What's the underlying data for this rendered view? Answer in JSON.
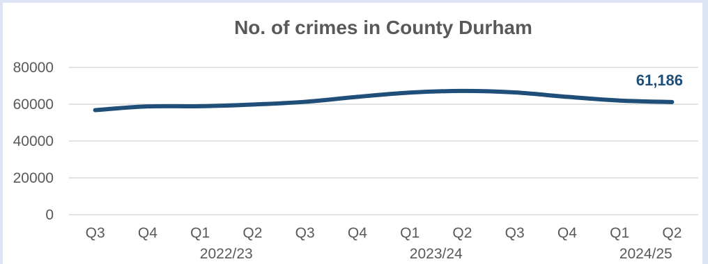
{
  "chart_data": {
    "type": "line",
    "title": "No. of crimes in County Durham",
    "xlabel": "",
    "ylabel": "",
    "categories": [
      "Q3",
      "Q4",
      "Q1",
      "Q2",
      "Q3",
      "Q4",
      "Q1",
      "Q2",
      "Q3",
      "Q4",
      "Q1",
      "Q2"
    ],
    "year_groups": [
      {
        "label": "2022/23",
        "start_index": 2,
        "end_index": 3
      },
      {
        "label": "2023/24",
        "start_index": 6,
        "end_index": 7
      },
      {
        "label": "2024/25",
        "start_index": 10,
        "end_index": 11
      }
    ],
    "series": [
      {
        "values": [
          56800,
          58800,
          58900,
          59800,
          61300,
          64000,
          66300,
          67200,
          66400,
          64000,
          62000,
          61186
        ],
        "color": "#1f4e79"
      }
    ],
    "ylim": [
      0,
      80000
    ],
    "yticks": [
      "0",
      "20000",
      "40000",
      "60000",
      "80000"
    ],
    "ytick_values": [
      0,
      20000,
      40000,
      60000,
      80000
    ],
    "data_labels": [
      {
        "index": 11,
        "text": "61,186"
      }
    ],
    "grid": true,
    "legend": "none"
  },
  "colors": {
    "line": "#1f4e79",
    "grid": "#d9d9d9",
    "text": "#595959",
    "border": "#dbe3f4"
  }
}
